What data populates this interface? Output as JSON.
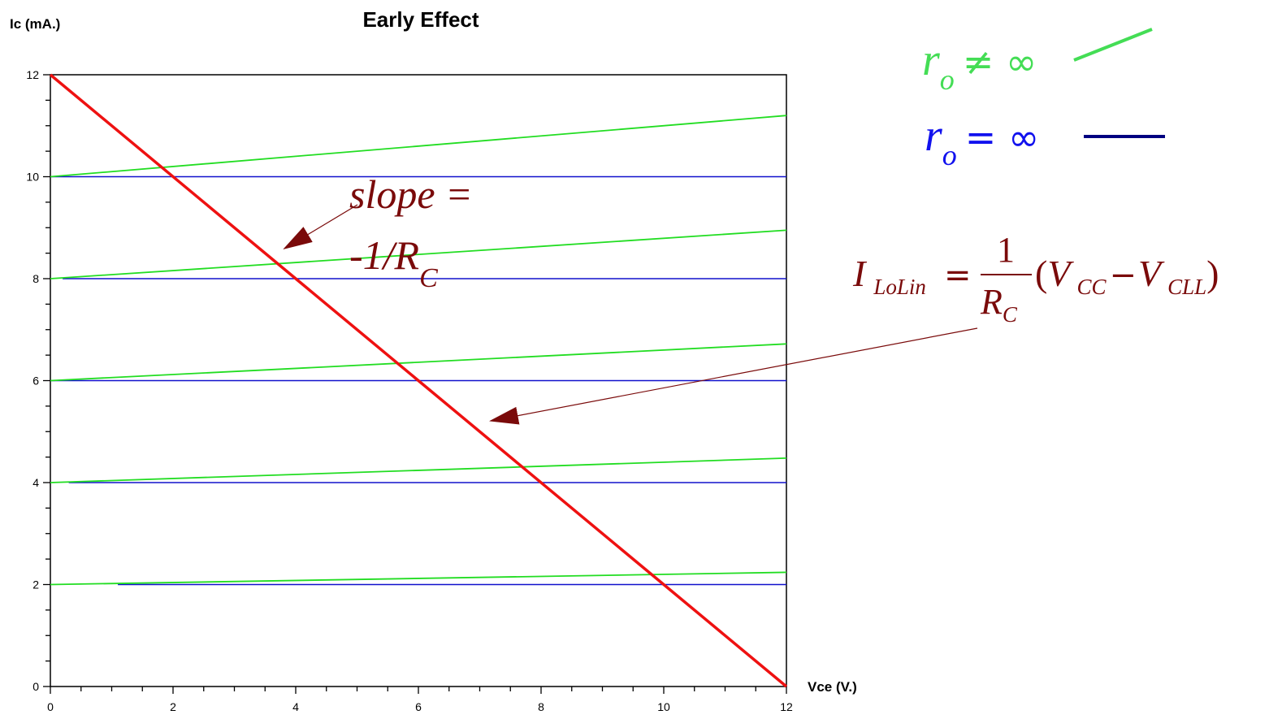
{
  "chart_data": {
    "type": "line",
    "title": "Early Effect",
    "xlabel": "Vce (V.)",
    "ylabel": "Ic (mA.)",
    "xlim": [
      0,
      12
    ],
    "ylim": [
      0,
      12
    ],
    "x_ticks": [
      "0",
      "2",
      "4",
      "6",
      "8",
      "10",
      "12"
    ],
    "y_ticks": [
      "0",
      "2",
      "4",
      "6",
      "8",
      "10",
      "12"
    ],
    "grid": false,
    "legend": "top-right",
    "colors": {
      "finite_ro": "#22dd22",
      "infinite_ro": "#1010cc",
      "load_line": "#ee1111",
      "annotation": "#7a0a0a",
      "legend_green": "#44dd55",
      "legend_blue": "#1111ee",
      "legend_swatch_blue": "#000080"
    },
    "finite_ro_curves": [
      {
        "x": [
          0,
          12
        ],
        "y": [
          10,
          11.2
        ]
      },
      {
        "x": [
          0,
          12
        ],
        "y": [
          8,
          8.95
        ]
      },
      {
        "x": [
          0,
          12
        ],
        "y": [
          6,
          6.72
        ]
      },
      {
        "x": [
          0,
          12
        ],
        "y": [
          4,
          4.48
        ]
      },
      {
        "x": [
          0,
          12
        ],
        "y": [
          2,
          2.24
        ]
      }
    ],
    "infinite_ro_curves": [
      {
        "x": [
          0,
          12
        ],
        "y": [
          10,
          10
        ]
      },
      {
        "x": [
          0.2,
          12
        ],
        "y": [
          8,
          8
        ]
      },
      {
        "x": [
          0,
          12
        ],
        "y": [
          6,
          6
        ]
      },
      {
        "x": [
          0.3,
          12
        ],
        "y": [
          4,
          4
        ]
      },
      {
        "x": [
          1.1,
          12
        ],
        "y": [
          2,
          2
        ]
      }
    ],
    "load_line": {
      "x": [
        0,
        12
      ],
      "y": [
        12,
        0
      ]
    },
    "annotations": {
      "slope_line1": "slope =",
      "slope_line2": "-1/R",
      "slope_sub": "C",
      "formula": {
        "lhs": "I",
        "lhs_sub": "LoLin",
        "eq": "=",
        "num": "1",
        "den": "R",
        "den_sub": "C",
        "open": "(",
        "v1": "V",
        "v1_sub": "CC",
        "minus": "−",
        "v2": "V",
        "v2_sub": "CLL",
        "close": ")"
      }
    },
    "legend_entries": [
      {
        "symbol": "r",
        "sub": "o",
        "relation": "≠ ∞"
      },
      {
        "symbol": "r",
        "sub": "o",
        "relation": "= ∞"
      }
    ]
  }
}
